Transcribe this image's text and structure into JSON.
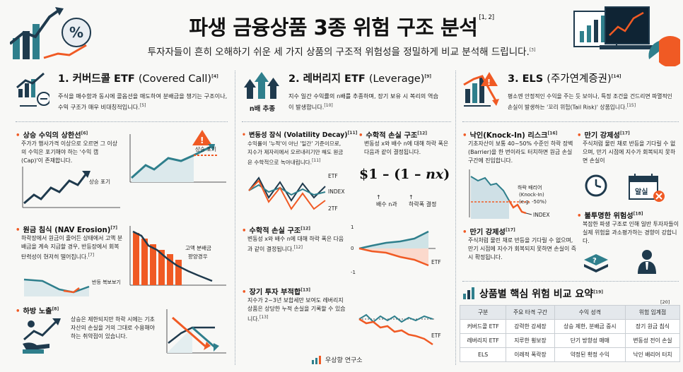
{
  "header": {
    "title": "파생 금융상품 3종 위험 구조 분석",
    "title_ref": "[1, 2]",
    "subtitle": "투자자들이 흔히 오해하기 쉬운 세 가지 상품의 구조적 위험성을 정밀하게 비교 분석해 드립니다.",
    "subtitle_ref": "[3]"
  },
  "colors": {
    "accent": "#f05a24",
    "teal": "#2f7f8c",
    "navy": "#1f3a4d"
  },
  "col1": {
    "title": "1. 커버드콜 ETF",
    "title_paren": "(Covered Call)",
    "ref": "[4]",
    "desc": "주식을 매수함과 동시에 콜옵션을 매도하여 분배금을 챙기는 구조이나, 수익 구조가 매우 비대칭적입니다.",
    "desc_ref": "[5]",
    "b1": {
      "title": "상승 수익의 상한선",
      "ref": "[6]",
      "text": "주가가 행사가격 이상으로 오르면 그 이상의 수익은 포기해야 하는 '수익 캡(Cap)'이 존재합니다.",
      "chart_label": "상승 포기",
      "chart_label2": "상승 포기"
    },
    "b2": {
      "title": "원금 침식 (NAV Erosion)",
      "ref": "[7]",
      "text": "하락장에서 원금이 줄어든 상태에서 고액 분배금을 계속 지급할 경우, 반등장에서 회복 탄력성이 현저히 떨어집니다.",
      "text_ref": "[7]",
      "label_a": "고액 분배금",
      "label_b": "꽝양경우",
      "label_c": "반등 복보보기"
    },
    "b3": {
      "title": "하방 노출",
      "ref": "[8]",
      "text": "상승은 제한되지만 하락 시에는 기초자산의 손실을 거의 그대로 수용해야 하는 취약점이 있습니다."
    }
  },
  "col2": {
    "title": "2. 레버리지 ETF",
    "title_paren": "(Leverage)",
    "ref": "[9]",
    "icon_label": "n배 추종",
    "desc": "지수 일간 수익률의 n배를 추종하며, 장기 보유 시 복리의 역습이 발생합니다.",
    "desc_ref": "[10]",
    "b1": {
      "title": "변동성 잠식 (Volatility Decay)",
      "ref": "[11]",
      "text": "수익률이 '누적'이 아닌 '일간' 기준이므로, 지수가 제자리에서 오르내리기만 해도 원금은 수학적으로 녹아내립니다.",
      "text_ref": "[11]",
      "lg1": "ETF",
      "lg2": "INDEX",
      "lg3": "2TF"
    },
    "b2": {
      "title": "수학적 손실 구조",
      "ref": "[12]",
      "text": "변동성 x와 배수 n에 대해 하락 폭은 다음과 같이 결정됩니다.",
      "formula_a": "$1 – (1 – ",
      "formula_b": "nx",
      "formula_c": ")",
      "note1": "배수 n과",
      "note2": "하락폭 결정"
    },
    "b3": {
      "title": "수학적 손실 구조",
      "ref": "[12]",
      "text": "변동성 x와 배수 n에 대해 하락 폭은 다음과 같이 결정됩니다.",
      "text_ref": "[12]",
      "y_top": "1",
      "y_mid": "0",
      "y_bot": "-1",
      "lg": "ETF"
    },
    "b4": {
      "title": "장기 투자 부적합",
      "ref": "[13]",
      "text": "지수가 2~3년 보합세만 보여도 레버리지 상품은 상당한 누적 손실을 기록할 수 있습니다.",
      "text_ref": "[13]",
      "lg": "ETF"
    }
  },
  "col3": {
    "title": "3. ELS",
    "title_paren": "(주가연계증권)",
    "ref": "[14]",
    "desc": "평소엔 안정적인 수익을 주는 듯 보이나, 특정 조건을 건드리면 파멸적인 손실이 발생하는 '꼬리 위험(Tail Risk)' 상품입니다.",
    "desc_ref": "[15]",
    "b1": {
      "title": "낙인(Knock-In) 리스크",
      "ref": "[16]",
      "text": "기초자산이 보통 40~50% 수준인 하락 장벽(Barrier)을 한 번이라도 터치하면 원금 손실 구간에 진입합니다.",
      "label1": "하락 배리어",
      "label2": "(Knock-In)",
      "label3": "(e.g. -50%)",
      "label4": "INDEX"
    },
    "b2": {
      "title": "만기 강제성",
      "ref": "[17]",
      "text": "주식처럼 물린 채로 반등을 기다릴 수 없으며, 만기 시점에 지수가 회복되지 못하면 손실이",
      "calendar": "알실"
    },
    "b3": {
      "title": "만기 강제성",
      "ref": "[17]",
      "text": "주식처럼 물린 채로 반등을 기다릴 수 없으며, 만기 시점에 지수가 회복되지 못하면 손실이 즉시 확정됩니다."
    },
    "b4": {
      "title": "불투명한 위험성",
      "ref": "[18]",
      "text": "복잡한 파생 구조로 인해 일반 투자자들이 실제 위험을 과소평가하는 경향이 강합니다."
    }
  },
  "summary": {
    "title": "상품별 핵심 위험 비교 요약",
    "ref": "[19]",
    "table_ref": "[20]",
    "headers": [
      "구분",
      "주요 타격 구간",
      "수익 성격",
      "위험 임계점"
    ],
    "rows": [
      [
        "커버드콜 ETF",
        "강력한 강세장",
        "상승 제한, 분배금 중시",
        "장기 원금 침식"
      ],
      [
        "레버리지 ETF",
        "지루한 횡보장",
        "단기 방향성 매매",
        "변동성 전이 손실"
      ],
      [
        "ELS",
        "이례적 폭락장",
        "약정된 확정 수익",
        "낙인 배리어 터치"
      ]
    ]
  },
  "footer": {
    "brand": "우상향 연구소"
  }
}
